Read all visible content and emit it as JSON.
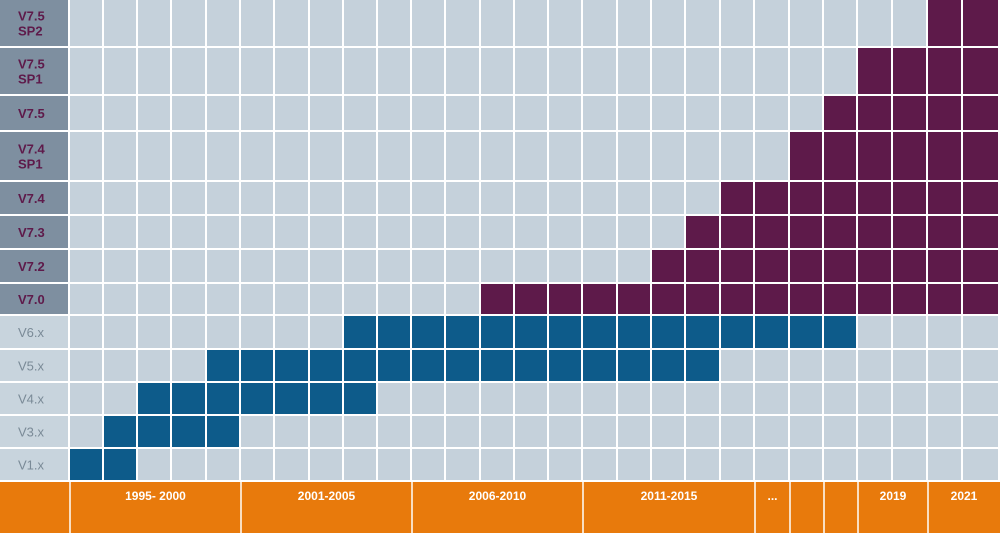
{
  "chart_data": {
    "type": "heatmap",
    "title": "",
    "colors": {
      "empty": "#c5d1db",
      "gap": "#ffffff",
      "new_version": "#5e1a4a",
      "old_version": "#0d5b8a",
      "timeline": "#e87a0c",
      "label_new_bg": "#7e8fa0",
      "label_old_bg": "#c8d4dd",
      "label_new_text": "#5e1a4a",
      "label_old_text": "#7a8a97",
      "timeline_text": "#ffffff"
    },
    "versions": [
      {
        "label": "V7.5\nSP2",
        "kind": "new",
        "start": 25,
        "end": 27
      },
      {
        "label": "V7.5\nSP1",
        "kind": "new",
        "start": 23,
        "end": 27
      },
      {
        "label": "V7.5",
        "kind": "new",
        "start": 22,
        "end": 27
      },
      {
        "label": "V7.4\nSP1",
        "kind": "new",
        "start": 21,
        "end": 27
      },
      {
        "label": "V7.4",
        "kind": "new",
        "start": 19,
        "end": 27
      },
      {
        "label": "V7.3",
        "kind": "new",
        "start": 18,
        "end": 27
      },
      {
        "label": "V7.2",
        "kind": "new",
        "start": 17,
        "end": 27
      },
      {
        "label": "V7.0",
        "kind": "new",
        "start": 12,
        "end": 27
      },
      {
        "label": "V6.x",
        "kind": "old",
        "start": 8,
        "end": 23
      },
      {
        "label": "V5.x",
        "kind": "old",
        "start": 4,
        "end": 19
      },
      {
        "label": "V4.x",
        "kind": "old",
        "start": 2,
        "end": 9
      },
      {
        "label": "V3.x",
        "kind": "old",
        "start": 1,
        "end": 5
      },
      {
        "label": "V1.x",
        "kind": "old",
        "start": 0,
        "end": 2
      }
    ],
    "periods": [
      {
        "label": "1995- 2000"
      },
      {
        "label": "2001-2005"
      },
      {
        "label": "2006-2010"
      },
      {
        "label": "2011-2015"
      },
      {
        "label": "..."
      },
      {
        "label": ""
      },
      {
        "label": ""
      },
      {
        "label": "2019"
      },
      {
        "label": "2021"
      }
    ]
  }
}
